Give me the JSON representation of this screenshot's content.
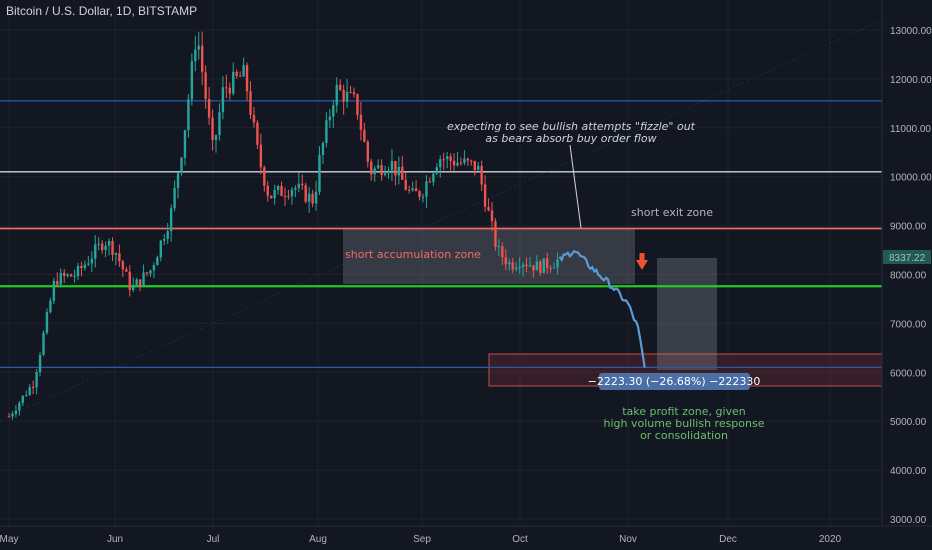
{
  "header": {
    "title": "Bitcoin / U.S. Dollar, 1D, BITSTAMP"
  },
  "colors": {
    "up": "#26a69a",
    "down": "#ef5350",
    "projection": "#5b9bd5",
    "green_line": "#22c922",
    "red_line": "#f06a6a",
    "white_line": "#d1d4dc",
    "blue_line": "#2a5aa8",
    "price_tag": "#4b6fa5"
  },
  "chart_data": {
    "type": "candlestick",
    "title": "Bitcoin / U.S. Dollar, 1D, BITSTAMP",
    "ylim": [
      3000,
      13500
    ],
    "y_ticks": [
      3000,
      4000,
      5000,
      6000,
      7000,
      8000,
      9000,
      10000,
      11000,
      12000,
      13000
    ],
    "y_tick_labels": [
      "3000.00",
      "4000.00",
      "5000.00",
      "6000.00",
      "7000.00",
      "8000.00",
      "9000.00",
      "10000.00",
      "11000.00",
      "12000.00",
      "13000.00"
    ],
    "x_tick_labels": [
      "May",
      "Jun",
      "Jul",
      "Aug",
      "Sep",
      "Oct",
      "Nov",
      "Dec",
      "2020"
    ],
    "current_price_label": "8337.22",
    "price_series": [
      [
        "May",
        5100
      ],
      [
        "May 8",
        5800
      ],
      [
        "May 14",
        7900
      ],
      [
        "May 20",
        8000
      ],
      [
        "May 28",
        8700
      ],
      [
        "Jun",
        8500
      ],
      [
        "Jun 6",
        7700
      ],
      [
        "Jun 12",
        8100
      ],
      [
        "Jun 18",
        9200
      ],
      [
        "Jun 22",
        10800
      ],
      [
        "Jun 26",
        13000
      ],
      [
        "Jul",
        10500
      ],
      [
        "Jul 4",
        11800
      ],
      [
        "Jul 10",
        12100
      ],
      [
        "Jul 14",
        10400
      ],
      [
        "Jul 17",
        9600
      ],
      [
        "Jul 24",
        9800
      ],
      [
        "Jul 30",
        9500
      ],
      [
        "Aug",
        10200
      ],
      [
        "Aug 6",
        11800
      ],
      [
        "Aug 12",
        11500
      ],
      [
        "Aug 16",
        10100
      ],
      [
        "Aug 22",
        10300
      ],
      [
        "Aug 28",
        9600
      ],
      [
        "Sep",
        9700
      ],
      [
        "Sep 6",
        10400
      ],
      [
        "Sep 12",
        10300
      ],
      [
        "Sep 18",
        10200
      ],
      [
        "Sep 24",
        8500
      ],
      [
        "Sep 28",
        8200
      ],
      [
        "Oct",
        8300
      ],
      [
        "Oct 6",
        8150
      ],
      [
        "Oct 12",
        8300
      ]
    ],
    "projection_series": [
      [
        "Oct 12",
        8300
      ],
      [
        "Oct 16",
        8500
      ],
      [
        "Oct 20",
        8200
      ],
      [
        "Oct 26",
        7800
      ],
      [
        "Nov",
        7400
      ],
      [
        "Nov 4",
        6900
      ],
      [
        "Nov 6",
        6100
      ]
    ],
    "horizontal_levels": [
      {
        "value": 11550,
        "role": "blue_line"
      },
      {
        "value": 10100,
        "role": "white_line"
      },
      {
        "value": 8940,
        "role": "red_line"
      },
      {
        "value": 7760,
        "role": "green_line"
      },
      {
        "value": 6100,
        "role": "blue_line"
      }
    ],
    "annotations": {
      "note_line1": "expecting to see bullish attempts \"fizzle\" out",
      "note_line2": "as bears absorb buy order flow",
      "short_exit": "short exit zone",
      "short_accumulation": "short accumulation zone",
      "measure": "−2223.30 (−26.68%) −222330",
      "take_profit1": "take profit zone, given",
      "take_profit2": "high volume bullish response",
      "take_profit3": "or consolidation"
    }
  }
}
